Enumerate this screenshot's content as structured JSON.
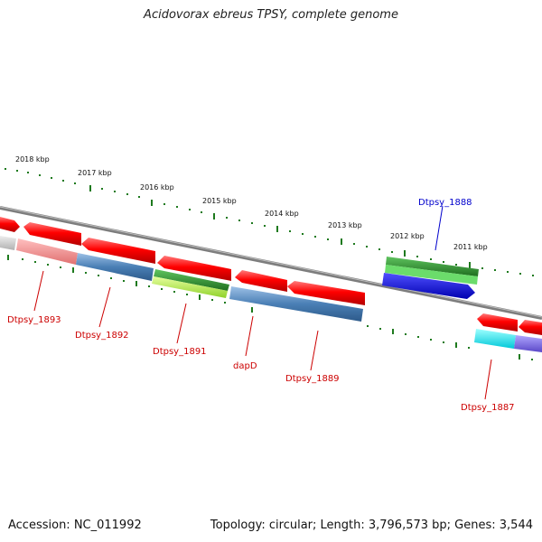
{
  "title": "Acidovorax ebreus TPSY, complete genome",
  "footer": {
    "accession": "Accession: NC_011992",
    "summary": "Topology: circular; Length: 3,796,573 bp; Genes: 3,544"
  },
  "scale_labels": [
    "2018 kbp",
    "2017 kbp",
    "2016 kbp",
    "2015 kbp",
    "2014 kbp",
    "2013 kbp",
    "2012 kbp",
    "2011 kbp"
  ],
  "colors": {
    "backbone": "#8c8c8c",
    "forward_gene": "#ff0000",
    "tick": "#1e7a1e",
    "label_red": "#cc0000",
    "label_blue": "#0000cc"
  },
  "gene_labels": [
    {
      "text": "Dtpsy_1893",
      "color": "#cc0000"
    },
    {
      "text": "Dtpsy_1892",
      "color": "#cc0000"
    },
    {
      "text": "Dtpsy_1891",
      "color": "#cc0000"
    },
    {
      "text": "dapD",
      "color": "#cc0000"
    },
    {
      "text": "Dtpsy_1889",
      "color": "#cc0000"
    },
    {
      "text": "Dtpsy_1888",
      "color": "#0000cc"
    },
    {
      "text": "Dtpsy_1887",
      "color": "#cc0000"
    }
  ],
  "feature_colors": {
    "pink": "#f08a8a",
    "steelblue": "#4a7fb5",
    "lightgreen": "#a8e63c",
    "darkgreen": "#2e8b2e",
    "green": "#5fd35f",
    "blue": "#1414e6",
    "cyan": "#00e5ee",
    "purple": "#7a6ae0",
    "gray": "#c8c8c8"
  }
}
